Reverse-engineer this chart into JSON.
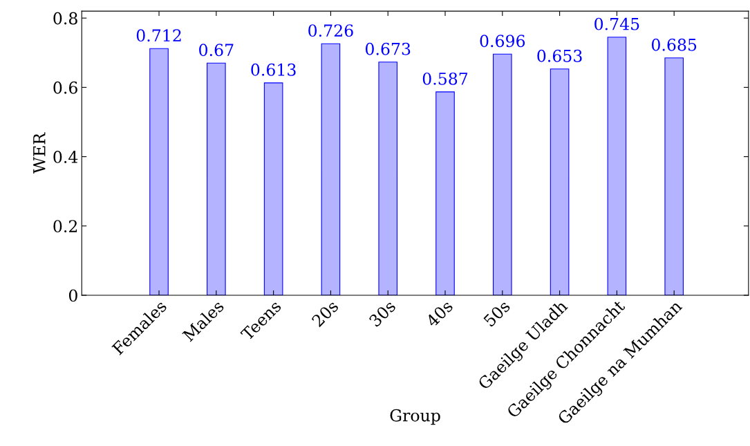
{
  "chart_data": {
    "type": "bar",
    "xlabel": "Group",
    "ylabel": "WER",
    "categories": [
      "Females",
      "Males",
      "Teens",
      "20s",
      "30s",
      "40s",
      "50s",
      "Gaeilge Uladh",
      "Gaeilge Chonnacht",
      "Gaeilge na Mumhan"
    ],
    "values": [
      0.712,
      0.67,
      0.613,
      0.726,
      0.673,
      0.587,
      0.696,
      0.653,
      0.745,
      0.685
    ],
    "color": "#b3b3ff",
    "ylim": [
      0,
      0.82
    ],
    "yticks": [
      {
        "value": 0,
        "label": "0"
      },
      0.2,
      0.4,
      0.6,
      0.8
    ],
    "data_labels": true,
    "grid": false
  }
}
